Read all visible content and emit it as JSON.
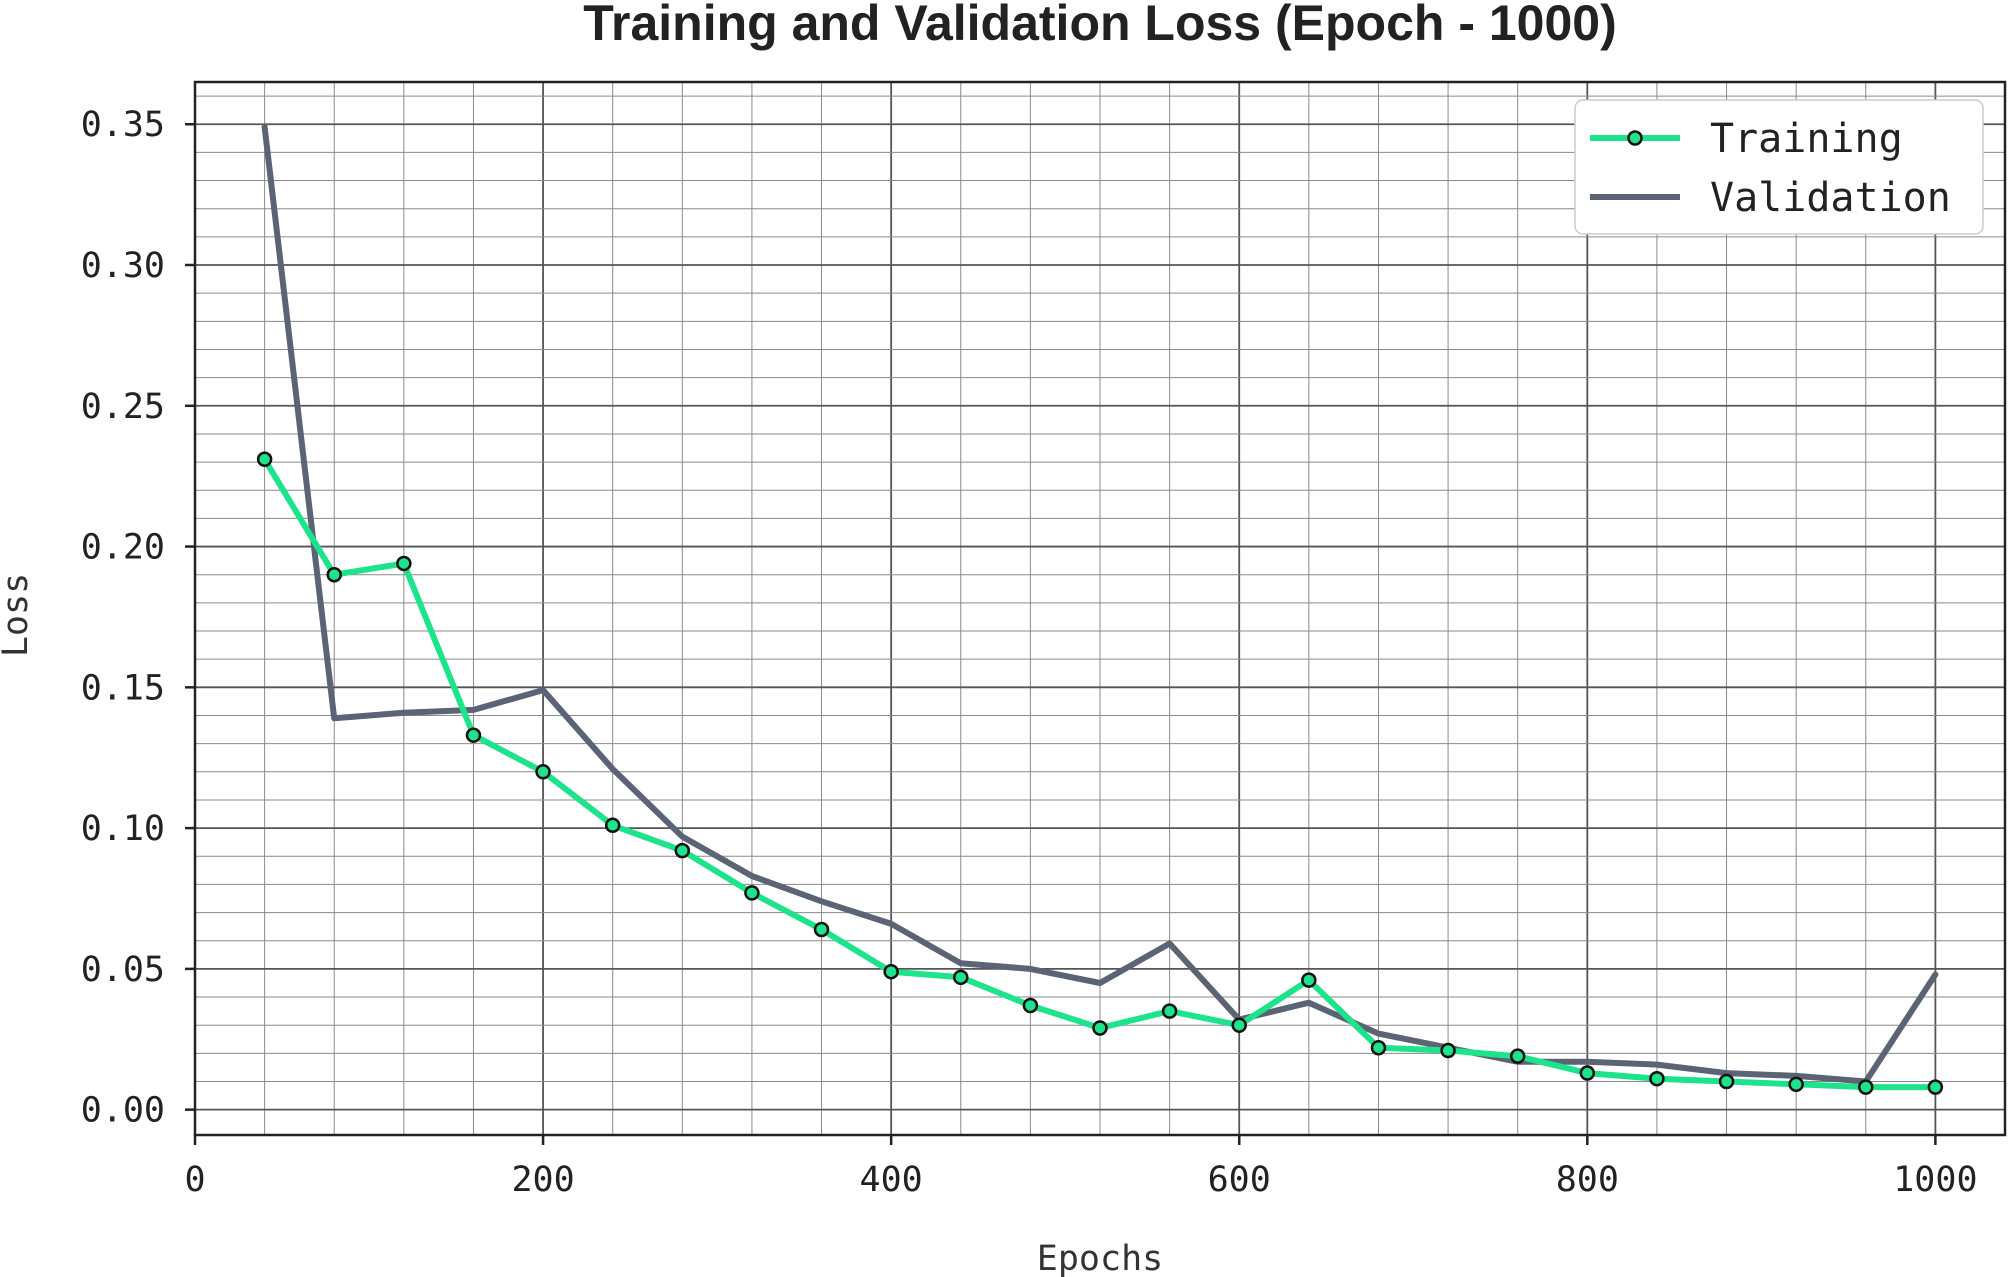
{
  "chart_data": {
    "type": "line",
    "title": "Training and Validation Loss (Epoch - 1000)",
    "xlabel": "Epochs",
    "ylabel": "Loss",
    "xlim": [
      0,
      1040
    ],
    "ylim": [
      -0.009,
      0.365
    ],
    "x_ticks": [
      0,
      200,
      400,
      600,
      800,
      1000
    ],
    "y_ticks": [
      0.0,
      0.05,
      0.1,
      0.15,
      0.2,
      0.25,
      0.3,
      0.35
    ],
    "x_tick_labels": [
      "0",
      "200",
      "400",
      "600",
      "800",
      "1000"
    ],
    "y_tick_labels": [
      "0.00",
      "0.05",
      "0.10",
      "0.15",
      "0.20",
      "0.25",
      "0.30",
      "0.35"
    ],
    "grid": true,
    "legend_position": "top-right",
    "x": [
      40,
      80,
      120,
      160,
      200,
      240,
      280,
      320,
      360,
      400,
      440,
      480,
      520,
      560,
      600,
      640,
      680,
      720,
      760,
      800,
      840,
      880,
      920,
      960,
      1000
    ],
    "series": [
      {
        "name": "Training",
        "color": "#1de38c",
        "marker": "circle",
        "values": [
          0.231,
          0.19,
          0.194,
          0.133,
          0.12,
          0.101,
          0.092,
          0.077,
          0.064,
          0.049,
          0.047,
          0.037,
          0.029,
          0.035,
          0.03,
          0.046,
          0.022,
          0.021,
          0.019,
          0.013,
          0.011,
          0.01,
          0.009,
          0.008,
          0.008
        ]
      },
      {
        "name": "Validation",
        "color": "#5a6475",
        "marker": "none",
        "values": [
          0.349,
          0.139,
          0.141,
          0.142,
          0.149,
          0.121,
          0.097,
          0.083,
          0.074,
          0.066,
          0.052,
          0.05,
          0.045,
          0.059,
          0.032,
          0.038,
          0.027,
          0.022,
          0.017,
          0.017,
          0.016,
          0.013,
          0.012,
          0.01,
          0.048
        ]
      }
    ]
  }
}
